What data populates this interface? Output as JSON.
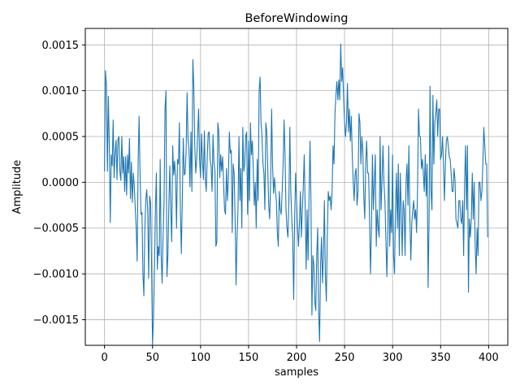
{
  "chart_data": {
    "type": "line",
    "title": "BeforeWindowing",
    "xlabel": "samples",
    "ylabel": "Amplitude",
    "xlim": [
      -20,
      420
    ],
    "ylim": [
      -0.00178,
      0.00168
    ],
    "grid": true,
    "line_color": "#1f77b4",
    "xticks": [
      0,
      50,
      100,
      150,
      200,
      250,
      300,
      350,
      400
    ],
    "xtick_labels": [
      "0",
      "50",
      "100",
      "150",
      "200",
      "250",
      "300",
      "350",
      "400"
    ],
    "yticks": [
      -0.0015,
      -0.001,
      -0.0005,
      0.0,
      0.0005,
      0.001,
      0.0015
    ],
    "ytick_labels": [
      "−0.0015",
      "−0.0010",
      "−0.0005",
      "0.0000",
      "0.0005",
      "0.0010",
      "0.0015"
    ],
    "series": [
      {
        "x_start": 0,
        "x_step": 1,
        "values": [
          0.00012,
          0.00122,
          0.00105,
          0.00012,
          0.00094,
          0.0004,
          -0.00044,
          0.0003,
          0.00018,
          0.00068,
          5e-05,
          0.00032,
          0.00046,
          3e-05,
          0.00047,
          0.0005,
          0.00012,
          2e-05,
          0.0005,
          0.0001,
          0.00028,
          -0.0001,
          0.00028,
          -0.00014,
          0.0003,
          0.0001,
          0.00048,
          -0.00018,
          0.00022,
          -0.00022,
          0.0001,
          -4e-05,
          -0.00028,
          -0.0005,
          -0.00086,
          0.0002,
          0.00072,
          0.0001,
          -0.00035,
          -0.00033,
          -0.001,
          -0.00124,
          -0.0005,
          -0.00018,
          -8e-05,
          -0.00032,
          -0.00105,
          -0.00015,
          -0.00022,
          -0.0009,
          -0.00177,
          -0.00148,
          -0.00095,
          -0.0003,
          0.0001,
          -0.00095,
          -0.0007,
          -0.0008,
          0.00025,
          -0.0008,
          -0.0011,
          -0.0006,
          -0.0002,
          0.0008,
          0.001,
          -0.00103,
          -0.0008,
          -0.00025,
          0.00018,
          -0.0003,
          -0.00065,
          0.0004,
          8e-05,
          0.00023,
          5e-05,
          -0.0005,
          0.00025,
          0.0002,
          0.00065,
          -0.0003,
          -0.00078,
          -0.0002,
          0.00048,
          8e-05,
          0.0001,
          0.00035,
          0.00098,
          0.00046,
          0.00036,
          -5e-05,
          0.00055,
          -0.0001,
          0.00134,
          0.00105,
          0.0004,
          0.0001,
          0.00025,
          0.00052,
          0.0008,
          0.00025,
          5e-05,
          0.00053,
          0.00023,
          3e-05,
          0.00056,
          2e-05,
          -0.0001,
          0.00028,
          0.00054,
          0.00055,
          0.00024,
          0.00018,
          -0.0001,
          0.00052,
          0.00022,
          0.00012,
          -0.0007,
          -0.00065,
          0.00065,
          0.00055,
          5e-05,
          0.0003,
          0.00012,
          0.00028,
          0.0,
          -0.0003,
          -0.00035,
          0.00015,
          -0.0002,
          5e-05,
          0.00055,
          0.00032,
          0.00035,
          -0.00055,
          0.0002,
          0.0001,
          -0.0004,
          -0.00112,
          -0.0006,
          -0.0003,
          0.0005,
          -0.0002,
          0.00015,
          -0.0005,
          0.0006,
          0.00012,
          0.0002,
          0.0005,
          0.00055,
          -0.00035,
          0.00045,
          -0.0002,
          0.00065,
          0.0003,
          0.00045,
          0.0001,
          -0.00025,
          0.0,
          -0.0005,
          0.00025,
          -0.0002,
          0.001,
          0.00115,
          0.00065,
          0.0005,
          0.0002,
          0.0001,
          -0.0003,
          0.00065,
          0.00055,
          0.00015,
          -0.00025,
          -0.0004,
          0.0,
          0.0008,
          0.0002,
          -0.00012,
          5e-05,
          -0.0001,
          -0.0002,
          -0.00055,
          -0.0007,
          -0.0001,
          -0.0003,
          -0.00035,
          -0.0001,
          0.0002,
          0.00068,
          0.0003,
          -0.0003,
          -0.0005,
          -0.0006,
          -0.0002,
          0.0006,
          -0.0001,
          -0.0004,
          -0.0006,
          -0.00128,
          -0.0004,
          0.0001,
          -0.0002,
          -0.0005,
          -0.0007,
          -0.00045,
          -0.0001,
          -0.0006,
          -0.0003,
          -5e-05,
          0.0003,
          -0.0003,
          -0.00095,
          -0.0003,
          -0.00085,
          -0.00015,
          0.00045,
          -0.0002,
          -0.00145,
          -0.0008,
          -0.0009,
          -0.0013,
          -0.0014,
          -0.0008,
          -0.0005,
          -0.00142,
          -0.00174,
          -0.0009,
          -0.0006,
          -0.0011,
          -0.0008,
          -0.0002,
          -0.001,
          -0.0013,
          -0.0006,
          -0.0001,
          -0.0002,
          -0.00015,
          -0.0003,
          -0.0001,
          0.0004,
          0.0002,
          0.00075,
          0.00095,
          0.0011,
          0.0009,
          0.00112,
          0.0009,
          0.00151,
          0.0011,
          0.00125,
          0.00092,
          0.00065,
          0.0005,
          0.00065,
          0.00108,
          0.00055,
          0.0008,
          0.00045,
          0.00072,
          0.0003,
          0.0,
          -0.0002,
          0.0001,
          0.00015,
          -0.00025,
          -0.0001,
          0.00075,
          0.00065,
          0.0002,
          0.0005,
          0.00035,
          -0.00015,
          -0.0004,
          0.0002,
          0.00045,
          0.0001,
          0.0001,
          -0.0004,
          -0.001,
          -0.0005,
          0.0003,
          -0.0003,
          0.0,
          0.0003,
          -0.0007,
          -0.0003,
          -0.0005,
          -0.0006,
          0.0005,
          -0.0003,
          2e-05,
          0.0004,
          0.0,
          -0.0002,
          -0.0006,
          -0.00103,
          -0.0006,
          0.0004,
          -0.0007,
          -0.0003,
          -0.00055,
          0.0003,
          -0.0008,
          -0.001,
          -0.0003,
          0.0001,
          -0.0005,
          0.0002,
          -0.0008,
          0.0001,
          -0.0003,
          -0.0008,
          -0.0002,
          -0.0003,
          -0.0008,
          0.0,
          0.0002,
          -0.00025,
          0.0004,
          -0.00038,
          -0.00085,
          -0.00045,
          -0.0003,
          -0.0002,
          -0.0004,
          -0.0003,
          -0.00055,
          -8e-05,
          0.0008,
          0.0005,
          0.0005,
          0.00015,
          0.00025,
          0.0001,
          -0.0001,
          0.0003,
          -0.00015,
          0.0002,
          -0.00115,
          -0.0004,
          0.00105,
          -0.0001,
          -0.0003,
          0.00095,
          0.0002,
          0.00065,
          0.00075,
          0.0009,
          0.0005,
          0.0008,
          0.0008,
          0.00025,
          0.0003,
          0.0005,
          0.0002,
          -0.0002,
          0.0002,
          0.00045,
          0.0005,
          0.0004,
          0.00028,
          0.00025,
          0.0001,
          -0.0001,
          -0.0001,
          0.00015,
          3e-05,
          -0.0004,
          -0.00045,
          -0.0005,
          -0.0002,
          -0.0002,
          -0.0004,
          -0.00045,
          -0.0002,
          -0.0008,
          0.0,
          0.0004,
          -0.0003,
          0.0004,
          -0.0012,
          -0.0004,
          -0.0006,
          -0.0004,
          0.0001,
          -0.0004,
          0.0,
          -0.0007,
          -0.001,
          -0.0005,
          -0.0008,
          0.0,
          0.0,
          -0.0002,
          -0.0001,
          0.0002,
          0.0006,
          0.0004,
          0.0002,
          0.0002,
          -0.0006
        ]
      }
    ]
  }
}
